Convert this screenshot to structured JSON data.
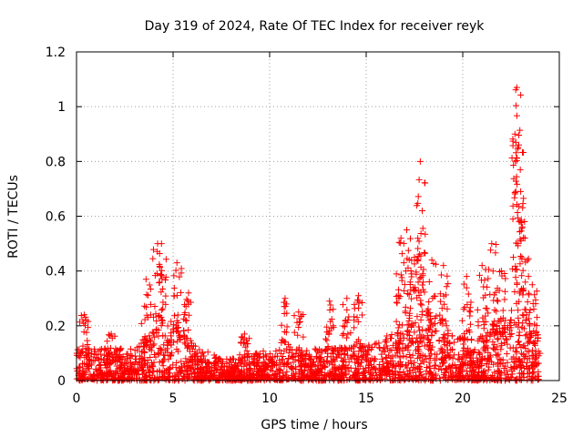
{
  "chart_data": {
    "type": "scatter",
    "title": "Day 319 of 2024, Rate Of TEC Index for receiver reyk",
    "xlabel": "GPS time / hours",
    "ylabel": "ROTI / TECUs",
    "xlim": [
      0,
      25
    ],
    "ylim": [
      0,
      1.2
    ],
    "x_ticks": [
      0,
      5,
      10,
      15,
      20,
      25
    ],
    "x_tick_labels": [
      "0",
      "5",
      "10",
      "15",
      "20",
      "25"
    ],
    "y_ticks": [
      0,
      0.2,
      0.4,
      0.6,
      0.8,
      1.0,
      1.2
    ],
    "y_tick_labels": [
      "0",
      "0.2",
      "0.4",
      "0.6",
      "0.8",
      "1",
      "1.2"
    ],
    "grid": true,
    "marker": "+",
    "marker_color": "#ff0000",
    "series": [
      {
        "name": "ROTI",
        "envelope_note": "Dense cloud of points between 0 and 0.2 across 0-24 h; notable peaks listed in 'peaks'.",
        "peaks": [
          {
            "x": 0.4,
            "y": 0.24
          },
          {
            "x": 1.8,
            "y": 0.17
          },
          {
            "x": 3.6,
            "y": 0.37
          },
          {
            "x": 4.2,
            "y": 0.5
          },
          {
            "x": 4.4,
            "y": 0.5
          },
          {
            "x": 5.2,
            "y": 0.43
          },
          {
            "x": 5.8,
            "y": 0.32
          },
          {
            "x": 8.7,
            "y": 0.17
          },
          {
            "x": 10.8,
            "y": 0.3
          },
          {
            "x": 11.5,
            "y": 0.25
          },
          {
            "x": 13.1,
            "y": 0.29
          },
          {
            "x": 14.0,
            "y": 0.3
          },
          {
            "x": 14.6,
            "y": 0.31
          },
          {
            "x": 16.8,
            "y": 0.52
          },
          {
            "x": 17.1,
            "y": 0.55
          },
          {
            "x": 17.5,
            "y": 0.45
          },
          {
            "x": 17.8,
            "y": 0.8
          },
          {
            "x": 17.9,
            "y": 0.62
          },
          {
            "x": 18.4,
            "y": 0.44
          },
          {
            "x": 19.0,
            "y": 0.42
          },
          {
            "x": 20.2,
            "y": 0.38
          },
          {
            "x": 21.0,
            "y": 0.42
          },
          {
            "x": 21.5,
            "y": 0.5
          },
          {
            "x": 22.0,
            "y": 0.4
          },
          {
            "x": 22.7,
            "y": 0.9
          },
          {
            "x": 22.8,
            "y": 1.07
          },
          {
            "x": 22.9,
            "y": 0.86
          },
          {
            "x": 23.0,
            "y": 0.69
          },
          {
            "x": 23.2,
            "y": 0.58
          },
          {
            "x": 23.6,
            "y": 0.35
          }
        ]
      }
    ]
  }
}
